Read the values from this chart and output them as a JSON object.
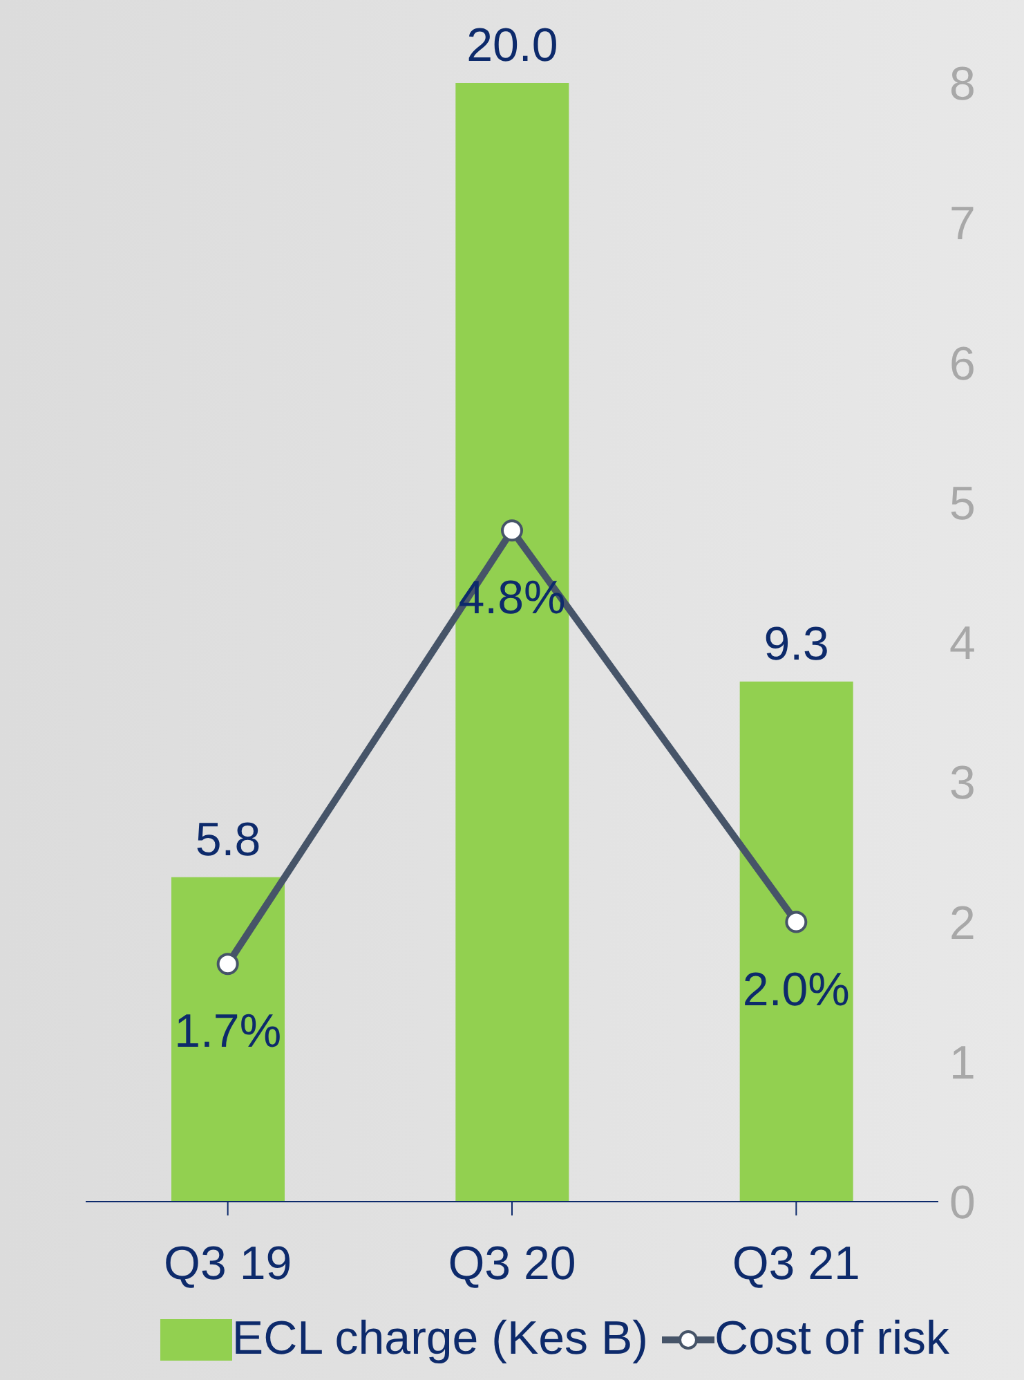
{
  "chart_data": {
    "type": "bar",
    "categories": [
      "Q3 19",
      "Q3 20",
      "Q3 21"
    ],
    "series": [
      {
        "name": "ECL charge (Kes B)",
        "color": "#92d050",
        "values": [
          5.8,
          20.0,
          9.3
        ],
        "value_labels": [
          "5.8",
          "20.0",
          "9.3"
        ]
      },
      {
        "name": "Cost of risk",
        "type": "line",
        "axis": "y2",
        "color": "#465468",
        "values": [
          1.7,
          4.8,
          2.0
        ],
        "value_labels": [
          "1.7%",
          "4.8%",
          "2.0%"
        ]
      }
    ],
    "ylim": [
      0,
      20
    ],
    "y2lim": [
      0,
      8
    ],
    "y2ticks": [
      0,
      1,
      2,
      3,
      4,
      5,
      6,
      7,
      8
    ],
    "legend": "bottom",
    "marker": "circle",
    "grid": false
  }
}
